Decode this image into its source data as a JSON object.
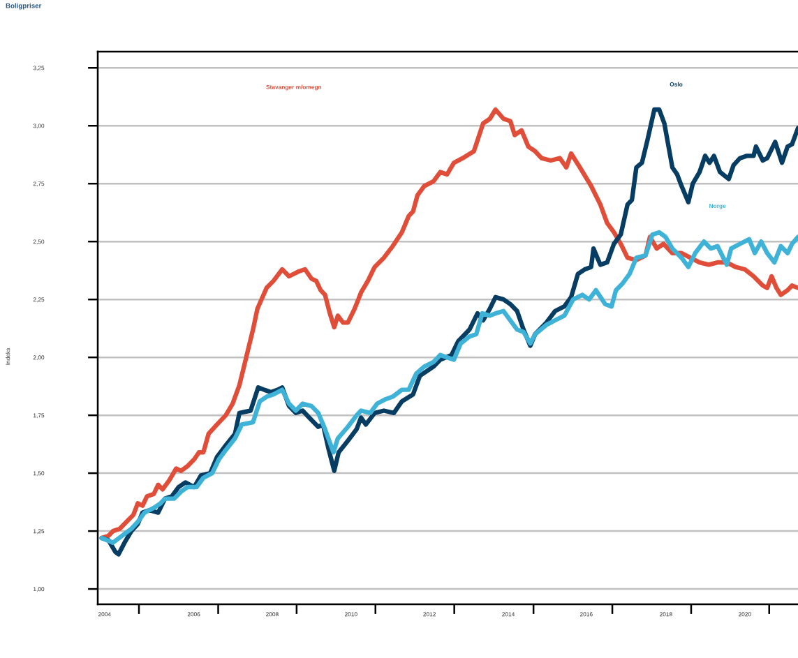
{
  "chart_data": {
    "type": "line",
    "title": "Boligpriser",
    "ylabel": "Indeks",
    "xlim": [
      2003.83,
      2021.33
    ],
    "ylim": [
      0.934,
      3.32
    ],
    "xticks": [
      {
        "value": 2004.0,
        "label": "2004"
      },
      {
        "value": 2006.23,
        "label": "2006"
      },
      {
        "value": 2008.19,
        "label": "2008"
      },
      {
        "value": 2010.16,
        "label": "2010"
      },
      {
        "value": 2012.12,
        "label": "2012"
      },
      {
        "value": 2014.09,
        "label": "2014"
      },
      {
        "value": 2016.04,
        "label": "2016"
      },
      {
        "value": 2018.03,
        "label": "2018"
      },
      {
        "value": 2020.0,
        "label": "2020"
      },
      {
        "value": 2004.86,
        "label": null
      },
      {
        "value": 2006.84,
        "label": null
      },
      {
        "value": 2008.8,
        "label": null
      },
      {
        "value": 2010.77,
        "label": null
      },
      {
        "value": 2012.74,
        "label": null
      },
      {
        "value": 2014.72,
        "label": null
      },
      {
        "value": 2016.69,
        "label": null
      },
      {
        "value": 2018.66,
        "label": null
      },
      {
        "value": 2020.61,
        "label": null
      }
    ],
    "yticks": [
      {
        "value": 1.0,
        "label": "1,00"
      },
      {
        "value": 1.25,
        "label": "1,25"
      },
      {
        "value": 1.5,
        "label": "1,50"
      },
      {
        "value": 1.75,
        "label": "1,75"
      },
      {
        "value": 2.0,
        "label": "2,00"
      },
      {
        "value": 2.25,
        "label": "2,25"
      },
      {
        "value": 2.5,
        "label": "2,50"
      },
      {
        "value": 2.75,
        "label": "2,75"
      },
      {
        "value": 3.0,
        "label": "3,00"
      },
      {
        "value": 3.25,
        "label": "3,25"
      }
    ],
    "grid": "y",
    "legend": false,
    "marker": "none",
    "line_style": "solid",
    "series": [
      {
        "name": "Stavanger m/omegn",
        "color": "#e04e39",
        "x": [
          2003.93,
          2004.1,
          2004.21,
          2004.38,
          2004.55,
          2004.72,
          2004.83,
          2004.95,
          2005.06,
          2005.23,
          2005.34,
          2005.45,
          2005.62,
          2005.79,
          2005.91,
          2006.07,
          2006.24,
          2006.36,
          2006.47,
          2006.6,
          2006.81,
          2007.03,
          2007.2,
          2007.37,
          2007.54,
          2007.71,
          2007.82,
          2008.05,
          2008.22,
          2008.44,
          2008.61,
          2008.84,
          2009.01,
          2009.17,
          2009.29,
          2009.4,
          2009.51,
          2009.63,
          2009.74,
          2009.83,
          2009.96,
          2010.08,
          2010.25,
          2010.41,
          2010.58,
          2010.75,
          2010.98,
          2011.2,
          2011.43,
          2011.6,
          2011.71,
          2011.82,
          2011.99,
          2012.22,
          2012.39,
          2012.56,
          2012.73,
          2012.95,
          2013.23,
          2013.46,
          2013.63,
          2013.77,
          2013.97,
          2014.14,
          2014.25,
          2014.42,
          2014.59,
          2014.76,
          2014.92,
          2015.15,
          2015.38,
          2015.54,
          2015.66,
          2015.88,
          2016.16,
          2016.39,
          2016.56,
          2016.73,
          2016.9,
          2017.07,
          2017.29,
          2017.52,
          2017.63,
          2017.8,
          2017.97,
          2018.19,
          2018.42,
          2018.64,
          2018.87,
          2019.1,
          2019.32,
          2019.55,
          2019.77,
          2020.0,
          2020.22,
          2020.45,
          2020.56,
          2020.67,
          2020.79,
          2020.9,
          2021.07,
          2021.18,
          2021.33
        ],
        "values": [
          1.22,
          1.23,
          1.25,
          1.26,
          1.29,
          1.32,
          1.37,
          1.36,
          1.4,
          1.41,
          1.45,
          1.43,
          1.47,
          1.52,
          1.51,
          1.53,
          1.56,
          1.59,
          1.59,
          1.67,
          1.71,
          1.75,
          1.8,
          1.88,
          2.0,
          2.12,
          2.21,
          2.3,
          2.33,
          2.38,
          2.35,
          2.37,
          2.38,
          2.34,
          2.33,
          2.29,
          2.27,
          2.19,
          2.13,
          2.18,
          2.15,
          2.15,
          2.21,
          2.28,
          2.33,
          2.39,
          2.43,
          2.48,
          2.54,
          2.61,
          2.63,
          2.7,
          2.74,
          2.76,
          2.8,
          2.79,
          2.84,
          2.86,
          2.89,
          3.01,
          3.03,
          3.07,
          3.03,
          3.02,
          2.96,
          2.98,
          2.91,
          2.89,
          2.86,
          2.85,
          2.86,
          2.82,
          2.88,
          2.82,
          2.74,
          2.66,
          2.58,
          2.54,
          2.49,
          2.43,
          2.42,
          2.44,
          2.52,
          2.47,
          2.49,
          2.45,
          2.45,
          2.43,
          2.41,
          2.4,
          2.41,
          2.41,
          2.39,
          2.38,
          2.35,
          2.31,
          2.3,
          2.35,
          2.3,
          2.27,
          2.29,
          2.31,
          2.3
        ]
      },
      {
        "name": "Oslo",
        "color": "#073d63",
        "x": [
          2003.93,
          2004.1,
          2004.27,
          2004.35,
          2004.5,
          2004.67,
          2004.83,
          2004.95,
          2005.12,
          2005.34,
          2005.51,
          2005.68,
          2005.85,
          2006.02,
          2006.24,
          2006.41,
          2006.64,
          2006.81,
          2007.03,
          2007.26,
          2007.37,
          2007.65,
          2007.84,
          2007.99,
          2008.16,
          2008.33,
          2008.44,
          2008.61,
          2008.78,
          2008.95,
          2009.17,
          2009.34,
          2009.46,
          2009.59,
          2009.74,
          2009.85,
          2010.08,
          2010.3,
          2010.41,
          2010.53,
          2010.75,
          2010.98,
          2011.23,
          2011.43,
          2011.71,
          2011.88,
          2012.22,
          2012.39,
          2012.67,
          2012.84,
          2013.12,
          2013.32,
          2013.46,
          2013.63,
          2013.77,
          2013.97,
          2014.14,
          2014.31,
          2014.47,
          2014.64,
          2014.76,
          2015.04,
          2015.26,
          2015.49,
          2015.66,
          2015.83,
          2016.0,
          2016.16,
          2016.22,
          2016.39,
          2016.56,
          2016.73,
          2016.9,
          2017.07,
          2017.18,
          2017.29,
          2017.43,
          2017.57,
          2017.74,
          2017.86,
          2017.99,
          2018.19,
          2018.31,
          2018.42,
          2018.59,
          2018.7,
          2018.87,
          2019.01,
          2019.12,
          2019.23,
          2019.38,
          2019.6,
          2019.72,
          2019.88,
          2020.05,
          2020.22,
          2020.28,
          2020.45,
          2020.56,
          2020.76,
          2020.93,
          2021.07,
          2021.18,
          2021.33
        ],
        "values": [
          1.22,
          1.21,
          1.16,
          1.15,
          1.2,
          1.25,
          1.28,
          1.33,
          1.34,
          1.33,
          1.39,
          1.4,
          1.44,
          1.46,
          1.44,
          1.49,
          1.5,
          1.57,
          1.62,
          1.67,
          1.76,
          1.77,
          1.87,
          1.86,
          1.85,
          1.86,
          1.87,
          1.79,
          1.76,
          1.77,
          1.73,
          1.7,
          1.71,
          1.61,
          1.51,
          1.59,
          1.64,
          1.69,
          1.74,
          1.71,
          1.76,
          1.77,
          1.76,
          1.81,
          1.84,
          1.92,
          1.96,
          1.99,
          2.01,
          2.07,
          2.12,
          2.19,
          2.16,
          2.21,
          2.26,
          2.25,
          2.23,
          2.2,
          2.12,
          2.05,
          2.1,
          2.15,
          2.2,
          2.22,
          2.26,
          2.36,
          2.38,
          2.39,
          2.47,
          2.4,
          2.41,
          2.49,
          2.53,
          2.66,
          2.68,
          2.82,
          2.84,
          2.94,
          3.07,
          3.07,
          3.01,
          2.82,
          2.79,
          2.74,
          2.67,
          2.75,
          2.8,
          2.87,
          2.84,
          2.87,
          2.8,
          2.77,
          2.83,
          2.86,
          2.87,
          2.87,
          2.91,
          2.85,
          2.86,
          2.93,
          2.84,
          2.91,
          2.92,
          2.99
        ]
      },
      {
        "name": "Norge",
        "color": "#3fb2d8",
        "x": [
          2003.93,
          2004.21,
          2004.44,
          2004.67,
          2004.83,
          2005.0,
          2005.23,
          2005.4,
          2005.51,
          2005.74,
          2005.91,
          2006.07,
          2006.3,
          2006.47,
          2006.69,
          2006.86,
          2007.03,
          2007.26,
          2007.43,
          2007.71,
          2007.88,
          2008.05,
          2008.22,
          2008.44,
          2008.61,
          2008.78,
          2008.95,
          2009.17,
          2009.34,
          2009.51,
          2009.72,
          2009.83,
          2010.08,
          2010.3,
          2010.41,
          2010.64,
          2010.81,
          2011.03,
          2011.2,
          2011.43,
          2011.6,
          2011.79,
          2011.99,
          2012.22,
          2012.39,
          2012.56,
          2012.73,
          2012.9,
          2013.12,
          2013.29,
          2013.44,
          2013.63,
          2013.77,
          2013.97,
          2014.14,
          2014.31,
          2014.47,
          2014.64,
          2014.76,
          2015.04,
          2015.26,
          2015.49,
          2015.71,
          2015.94,
          2016.11,
          2016.28,
          2016.51,
          2016.67,
          2016.78,
          2016.95,
          2017.12,
          2017.29,
          2017.52,
          2017.69,
          2017.86,
          2018.02,
          2018.19,
          2018.42,
          2018.59,
          2018.76,
          2018.98,
          2019.15,
          2019.32,
          2019.55,
          2019.66,
          2019.88,
          2020.11,
          2020.25,
          2020.41,
          2020.56,
          2020.74,
          2020.9,
          2021.07,
          2021.18,
          2021.33
        ],
        "values": [
          1.22,
          1.2,
          1.23,
          1.26,
          1.29,
          1.33,
          1.35,
          1.37,
          1.39,
          1.39,
          1.42,
          1.44,
          1.44,
          1.48,
          1.5,
          1.56,
          1.6,
          1.65,
          1.71,
          1.72,
          1.81,
          1.83,
          1.84,
          1.86,
          1.8,
          1.77,
          1.8,
          1.79,
          1.76,
          1.69,
          1.59,
          1.65,
          1.7,
          1.75,
          1.77,
          1.76,
          1.8,
          1.82,
          1.83,
          1.86,
          1.86,
          1.93,
          1.96,
          1.98,
          2.01,
          2.0,
          1.99,
          2.06,
          2.09,
          2.1,
          2.19,
          2.18,
          2.19,
          2.2,
          2.16,
          2.12,
          2.11,
          2.06,
          2.1,
          2.14,
          2.16,
          2.18,
          2.25,
          2.27,
          2.25,
          2.29,
          2.23,
          2.22,
          2.29,
          2.32,
          2.36,
          2.43,
          2.44,
          2.53,
          2.54,
          2.52,
          2.47,
          2.43,
          2.39,
          2.45,
          2.5,
          2.47,
          2.48,
          2.4,
          2.47,
          2.49,
          2.51,
          2.45,
          2.5,
          2.45,
          2.41,
          2.48,
          2.45,
          2.49,
          2.52
        ]
      }
    ]
  }
}
